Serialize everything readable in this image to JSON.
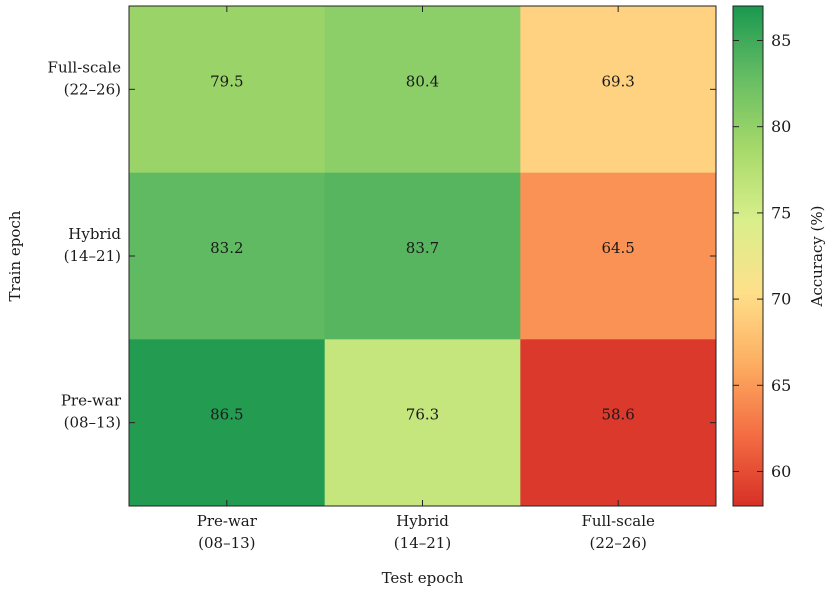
{
  "chart_data": {
    "type": "heatmap",
    "x_categories": [
      [
        "Pre-war",
        "(08–13)"
      ],
      [
        "Hybrid",
        "(14–21)"
      ],
      [
        "Full-scale",
        "(22–26)"
      ]
    ],
    "y_categories": [
      [
        "Full-scale",
        "(22–26)"
      ],
      [
        "Hybrid",
        "(14–21)"
      ],
      [
        "Pre-war",
        "(08–13)"
      ]
    ],
    "values": [
      [
        79.5,
        80.4,
        69.3
      ],
      [
        83.2,
        83.7,
        64.5
      ],
      [
        86.5,
        76.3,
        58.6
      ]
    ],
    "cell_labels": [
      [
        "79.5",
        "80.4",
        "69.3"
      ],
      [
        "83.2",
        "83.7",
        "64.5"
      ],
      [
        "86.5",
        "76.3",
        "58.6"
      ]
    ],
    "xlabel": "Test epoch",
    "ylabel": "Train epoch",
    "colorbar": {
      "label": "Accuracy (%)",
      "range": [
        58,
        87
      ],
      "ticks": [
        60,
        65,
        70,
        75,
        80,
        85
      ],
      "tick_labels": [
        "60",
        "65",
        "70",
        "75",
        "80",
        "85"
      ],
      "colormap": [
        "#d73027",
        "#f46d43",
        "#fdae61",
        "#fee08b",
        "#d9ef8b",
        "#a6d96a",
        "#66bd63",
        "#1a9850"
      ]
    },
    "grid": false,
    "legend": "colorbar-right"
  }
}
